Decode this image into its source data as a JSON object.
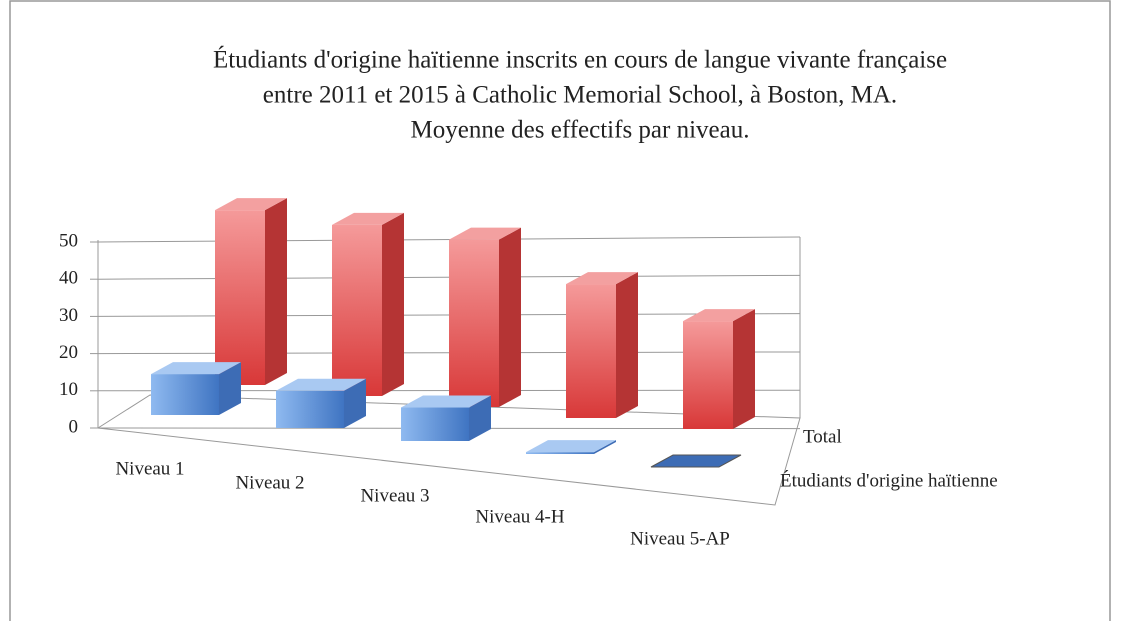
{
  "chart_data": {
    "type": "bar3d",
    "title": [
      "Étudiants d'origine haïtienne inscrits en cours de langue vivante française",
      "entre 2011 et 2015 à Catholic Memorial School, à Boston, MA.",
      "Moyenne des effectifs par niveau."
    ],
    "categories": [
      "Niveau 1",
      "Niveau 2",
      "Niveau 3",
      "Niveau 4-H",
      "Niveau 5-AP"
    ],
    "series": [
      {
        "name": "Étudiants d'origine haïtienne",
        "color": "#6a9be0",
        "values": [
          11,
          10,
          9,
          0.5,
          0
        ]
      },
      {
        "name": "Total",
        "color": "#e85a5a",
        "values": [
          47,
          46,
          45,
          36,
          29
        ]
      }
    ],
    "ylim": [
      0,
      50
    ],
    "yticks": [
      0,
      10,
      20,
      30,
      40,
      50
    ],
    "grid": true
  }
}
